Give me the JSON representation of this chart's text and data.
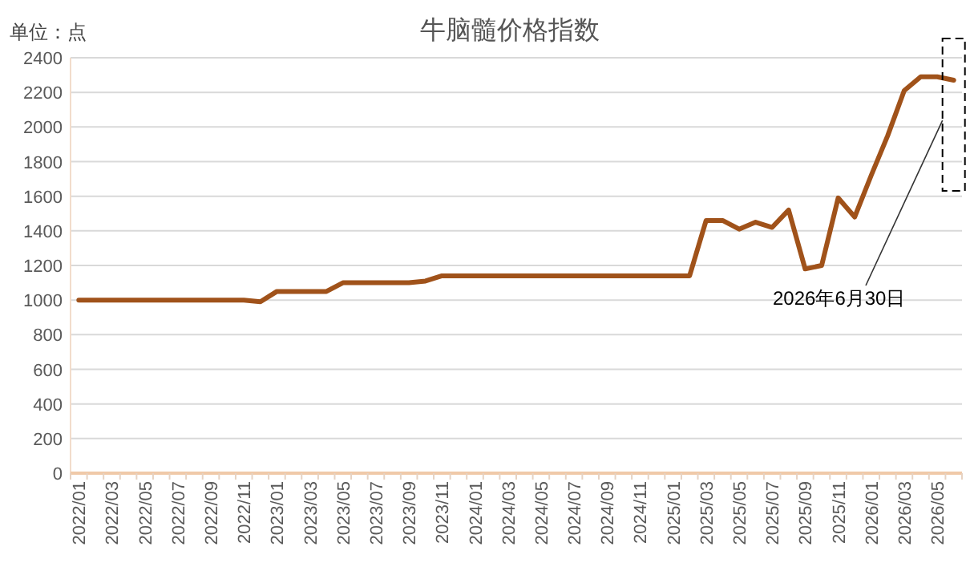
{
  "chart_data": {
    "type": "line",
    "title": "牛脑髓价格指数",
    "ylabel": "单位：点",
    "categories": [
      "2022/01",
      null,
      "2022/03",
      null,
      "2022/05",
      null,
      "2022/07",
      null,
      "2022/09",
      null,
      "2022/11",
      null,
      "2023/01",
      null,
      "2023/03",
      null,
      "2023/05",
      null,
      "2023/07",
      null,
      "2023/09",
      null,
      "2023/11",
      null,
      "2024/01",
      null,
      "2024/03",
      null,
      "2024/05",
      null,
      "2024/07",
      null,
      "2024/09",
      null,
      "2024/11",
      null,
      "2025/01",
      null,
      "2025/03",
      null,
      "2025/05",
      null,
      "2025/07",
      null,
      "2025/09",
      null,
      "2025/11",
      null,
      "2026/01",
      null,
      "2026/03",
      null,
      "2026/05",
      null
    ],
    "series": [
      {
        "color": "#a0521a",
        "values": [
          1000,
          1000,
          1000,
          1000,
          1000,
          1000,
          1000,
          1000,
          1000,
          1000,
          1000,
          990,
          1050,
          1050,
          1050,
          1050,
          1100,
          1100,
          1100,
          1100,
          1100,
          1110,
          1140,
          1140,
          1140,
          1140,
          1140,
          1140,
          1140,
          1140,
          1140,
          1140,
          1140,
          1140,
          1140,
          1140,
          1140,
          1140,
          1460,
          1460,
          1410,
          1450,
          1420,
          1520,
          1180,
          1200,
          1590,
          1480,
          1720,
          1950,
          2210,
          2290,
          2290,
          2270
        ]
      }
    ],
    "ylim": [
      0,
      2400
    ],
    "yticks": [
      0,
      200,
      400,
      600,
      800,
      1000,
      1200,
      1400,
      1600,
      1800,
      2000,
      2200,
      2400
    ],
    "grid": "y",
    "line_style": "solid",
    "marker": "none",
    "annotations": [
      "2026年6月30日"
    ]
  }
}
